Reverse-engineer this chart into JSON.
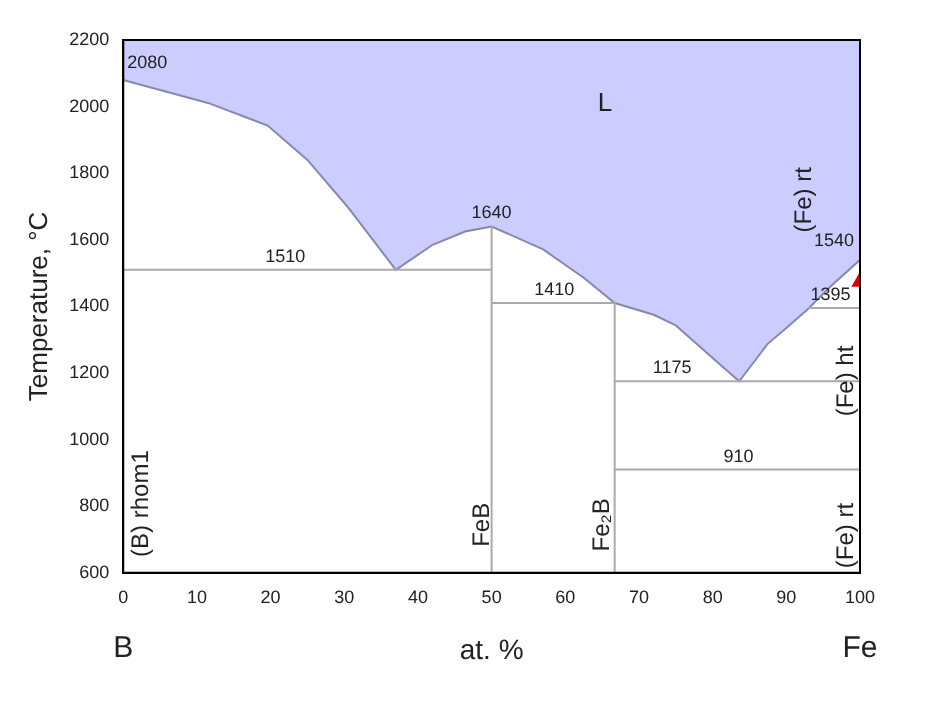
{
  "chart_data": {
    "type": "line",
    "xlabel": "at. %",
    "ylabel": "Temperature, °C",
    "xlim": [
      0,
      100
    ],
    "xticks": [
      0,
      10,
      20,
      30,
      40,
      50,
      60,
      70,
      80,
      90,
      100
    ],
    "ylim": [
      600,
      2200
    ],
    "yticks": [
      600,
      800,
      1000,
      1200,
      1400,
      1600,
      1800,
      2000,
      2200
    ],
    "grid": false,
    "legend": false,
    "marker": "none",
    "series": [
      {
        "type": "area",
        "color": "#ccccff",
        "x": [
          0,
          0,
          11.5,
          19.6,
          25,
          30.3,
          37,
          42,
          46.4,
          50,
          57,
          62.5,
          66.7,
          72,
          75,
          77.7,
          80.5,
          83.6,
          85.5,
          87.4,
          90,
          92.8,
          96,
          100,
          100
        ],
        "values": [
          2200,
          2080,
          2011,
          1943,
          1840,
          1703,
          1510,
          1585,
          1625,
          1640,
          1571,
          1486,
          1410,
          1375,
          1343,
          1290,
          1235,
          1175,
          1230,
          1286,
          1335,
          1389,
          1460,
          1540,
          2200
        ]
      },
      {
        "color": "#aaaaaa",
        "x": [
          0,
          50
        ],
        "values": [
          1510,
          1510
        ]
      },
      {
        "color": "#aaaaaa",
        "x": [
          50,
          50
        ],
        "values": [
          1640,
          600
        ]
      },
      {
        "color": "#aaaaaa",
        "x": [
          50,
          66.7
        ],
        "values": [
          1410,
          1410
        ]
      },
      {
        "color": "#aaaaaa",
        "x": [
          66.7,
          66.7
        ],
        "values": [
          1410,
          600
        ]
      },
      {
        "color": "#aaaaaa",
        "x": [
          66.7,
          100
        ],
        "values": [
          1175,
          1175
        ]
      },
      {
        "color": "#aaaaaa",
        "x": [
          66.7,
          100
        ],
        "values": [
          910,
          910
        ]
      },
      {
        "color": "#aaaaaa",
        "x": [
          93,
          100
        ],
        "values": [
          1395,
          1395
        ]
      },
      {
        "type": "scatter",
        "color": "#dd0000",
        "marker": "triangle",
        "x": [
          100
        ],
        "values": [
          1474
        ]
      }
    ],
    "annotations": [
      {
        "text": "2080",
        "x": 0,
        "y": 2080
      },
      {
        "text": "1510",
        "x": 22,
        "y": 1510
      },
      {
        "text": "1640",
        "x": 50,
        "y": 1640
      },
      {
        "text": "1410",
        "x": 58.5,
        "y": 1410
      },
      {
        "text": "1175",
        "x": 74.5,
        "y": 1175
      },
      {
        "text": "910",
        "x": 83.5,
        "y": 910
      },
      {
        "text": "1540",
        "x": 100,
        "y": 1540
      },
      {
        "text": "1395",
        "x": 96,
        "y": 1395
      },
      "L",
      "(Fe) rt",
      "(Fe) ht",
      "(Fe) rt",
      "(B) rhom1",
      "FeB",
      "Fe₂B",
      "B",
      "Fe"
    ]
  }
}
